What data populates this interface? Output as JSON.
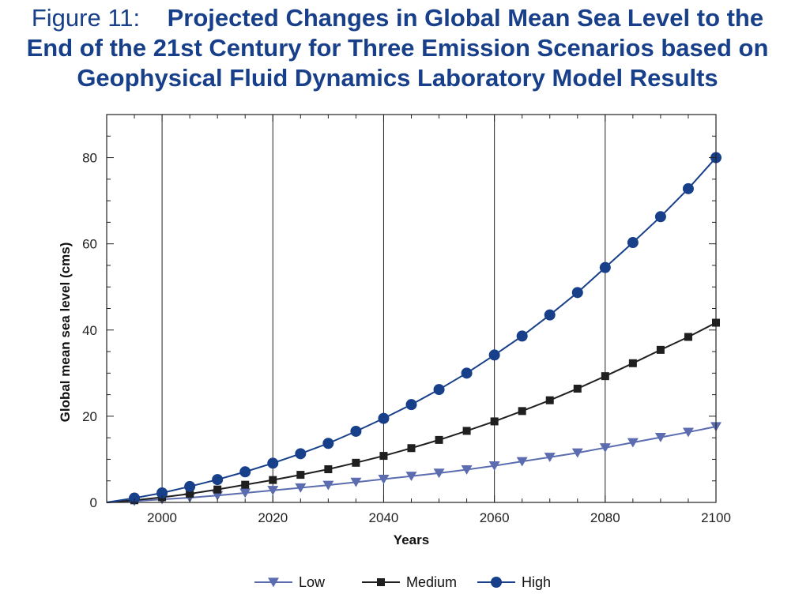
{
  "figure": {
    "label": "Figure 11:",
    "title_line1": "Projected Changes in Global Mean Sea Level to the",
    "title_line2": "End of the 21st Century for Three Emission Scenarios based on",
    "title_line3": "Geophysical Fluid Dynamics Laboratory Model Results"
  },
  "chart_data": {
    "type": "line",
    "title": "Projected Changes in Global Mean Sea Level to the End of the 21st Century for Three Emission Scenarios based on Geophysical Fluid Dynamics Laboratory Model Results",
    "xlabel": "Years",
    "ylabel": "Global mean sea level (cms)",
    "xlim": [
      1990,
      2100
    ],
    "ylim": [
      0,
      90
    ],
    "xticks": [
      2000,
      2020,
      2040,
      2060,
      2080,
      2100
    ],
    "yticks": [
      0,
      20,
      40,
      60,
      80
    ],
    "vertical_gridlines": true,
    "legend_position": "bottom",
    "x": [
      1990,
      1995,
      2000,
      2005,
      2010,
      2015,
      2020,
      2025,
      2030,
      2035,
      2040,
      2045,
      2050,
      2055,
      2060,
      2065,
      2070,
      2075,
      2080,
      2085,
      2090,
      2095,
      2100
    ],
    "series": [
      {
        "name": "Low",
        "marker": "triangle-down",
        "color": "#5b6db0",
        "values": [
          0,
          0.3,
          0.7,
          1.1,
          1.6,
          2.2,
          2.8,
          3.4,
          4.0,
          4.7,
          5.4,
          6.1,
          6.8,
          7.6,
          8.5,
          9.5,
          10.5,
          11.5,
          12.7,
          13.9,
          15.1,
          16.3,
          17.6
        ]
      },
      {
        "name": "Medium",
        "marker": "square",
        "color": "#1f1f1f",
        "values": [
          0,
          0.5,
          1.2,
          2.0,
          3.0,
          4.1,
          5.2,
          6.4,
          7.7,
          9.2,
          10.8,
          12.6,
          14.5,
          16.6,
          18.8,
          21.2,
          23.7,
          26.4,
          29.3,
          32.3,
          35.4,
          38.4,
          41.7
        ]
      },
      {
        "name": "High",
        "marker": "circle",
        "color": "#173f8a",
        "values": [
          0,
          1.0,
          2.2,
          3.7,
          5.3,
          7.1,
          9.1,
          11.3,
          13.7,
          16.5,
          19.5,
          22.7,
          26.2,
          30.0,
          34.2,
          38.6,
          43.5,
          48.7,
          54.5,
          60.3,
          66.3,
          72.8,
          80.0
        ]
      }
    ]
  }
}
